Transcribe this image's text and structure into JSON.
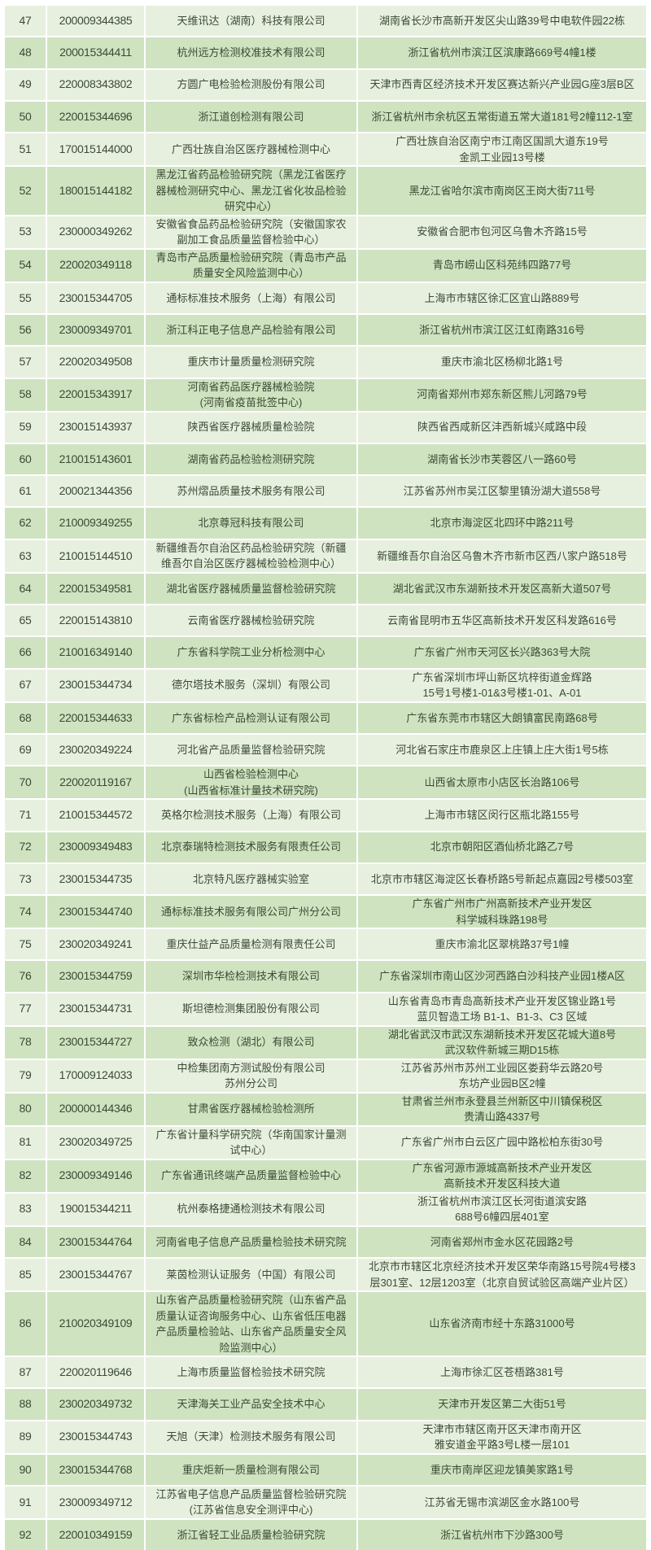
{
  "colors": {
    "row_light": "#e7f0df",
    "row_green": "#cfe3c1",
    "text": "#3b4a33"
  },
  "rows": [
    {
      "no": "47",
      "code": "200009344385",
      "name": "天维讯达（湖南）科技有限公司",
      "address": "湖南省长沙市高新开发区尖山路39号中电软件园22栋"
    },
    {
      "no": "48",
      "code": "200015344411",
      "name": "杭州远方检测校准技术有限公司",
      "address": "浙江省杭州市滨江区滨康路669号4幢1楼"
    },
    {
      "no": "49",
      "code": "220008343802",
      "name": "方圆广电检验检测股份有限公司",
      "address": "天津市西青区经济技术开发区赛达新兴产业园G座3层B区"
    },
    {
      "no": "50",
      "code": "220015344696",
      "name": "浙江道创检测有限公司",
      "address": "浙江省杭州市余杭区五常街道五常大道181号2幢112-1室"
    },
    {
      "no": "51",
      "code": "170015144000",
      "name": "广西壮族自治区医疗器械检测中心",
      "address": "广西壮族自治区南宁市江南区国凯大道东19号\n金凯工业园13号楼"
    },
    {
      "no": "52",
      "code": "180015144182",
      "name": "黑龙江省药品检验研究院（黑龙江省医疗\n器械检测研究中心、黑龙江省化妆品检验\n研究中心）",
      "address": "黑龙江省哈尔滨市南岗区王岗大街711号"
    },
    {
      "no": "53",
      "code": "230000349262",
      "name": "安徽省食品药品检验研究院（安徽国家农\n副加工食品质量监督检验中心）",
      "address": "安徽省合肥市包河区乌鲁木齐路15号"
    },
    {
      "no": "54",
      "code": "220020349118",
      "name": "青岛市产品质量检验研究院（青岛市产品\n质量安全风险监测中心）",
      "address": "青岛市崂山区科苑纬四路77号"
    },
    {
      "no": "55",
      "code": "230015344705",
      "name": "通标标准技术服务（上海）有限公司",
      "address": "上海市市辖区徐汇区宜山路889号"
    },
    {
      "no": "56",
      "code": "230009349701",
      "name": "浙江科正电子信息产品检验有限公司",
      "address": "浙江省杭州市滨江区江虹南路316号"
    },
    {
      "no": "57",
      "code": "220020349508",
      "name": "重庆市计量质量检测研究院",
      "address": "重庆市渝北区杨柳北路1号"
    },
    {
      "no": "58",
      "code": "220015343917",
      "name": "河南省药品医疗器械检验院\n(河南省疫苗批签中心)",
      "address": "河南省郑州市郑东新区熊儿河路79号"
    },
    {
      "no": "59",
      "code": "230015143937",
      "name": "陕西省医疗器械质量检验院",
      "address": "陕西省西咸新区沣西新城兴咸路中段"
    },
    {
      "no": "60",
      "code": "210015143601",
      "name": "湖南省药品检验检测研究院",
      "address": "湖南省长沙市芙蓉区八一路60号"
    },
    {
      "no": "61",
      "code": "200021344356",
      "name": "苏州熠品质量技术服务有限公司",
      "address": "江苏省苏州市吴江区黎里镇汾湖大道558号"
    },
    {
      "no": "62",
      "code": "210009349255",
      "name": "北京尊冠科技有限公司",
      "address": "北京市海淀区北四环中路211号"
    },
    {
      "no": "63",
      "code": "210015144510",
      "name": "新疆维吾尔自治区药品检验研究院（新疆\n维吾尔自治区医疗器械检验检测中心）",
      "address": "新疆维吾尔自治区乌鲁木齐市新市区西八家户路518号"
    },
    {
      "no": "64",
      "code": "220015349581",
      "name": "湖北省医疗器械质量监督检验研究院",
      "address": "湖北省武汉市东湖新技术开发区高新大道507号"
    },
    {
      "no": "65",
      "code": "220015143810",
      "name": "云南省医疗器械检验研究院",
      "address": "云南省昆明市五华区高新技术开发区科发路616号"
    },
    {
      "no": "66",
      "code": "210016349140",
      "name": "广东省科学院工业分析检测中心",
      "address": "广东省广州市天河区长兴路363号大院"
    },
    {
      "no": "67",
      "code": "230015344734",
      "name": "德尔塔技术服务（深圳）有限公司",
      "address": "广东省深圳市坪山新区坑梓街道金辉路\n15号1号楼1-01&3号楼1-01、A-01"
    },
    {
      "no": "68",
      "code": "220015344633",
      "name": "广东省标检产品检测认证有限公司",
      "address": "广东省东莞市市辖区大朗镇富民南路68号"
    },
    {
      "no": "69",
      "code": "230020349224",
      "name": "河北省产品质量监督检验研究院",
      "address": "河北省石家庄市鹿泉区上庄镇上庄大街1号5栋"
    },
    {
      "no": "70",
      "code": "220020119167",
      "name": "山西省检验检测中心\n(山西省标准计量技术研究院)",
      "address": "山西省太原市小店区长治路106号"
    },
    {
      "no": "71",
      "code": "210015344572",
      "name": "英格尔检测技术服务（上海）有限公司",
      "address": "上海市市辖区闵行区瓶北路155号"
    },
    {
      "no": "72",
      "code": "230009349483",
      "name": "北京泰瑞特检测技术服务有限责任公司",
      "address": "北京市朝阳区酒仙桥北路乙7号"
    },
    {
      "no": "73",
      "code": "230015344735",
      "name": "北京特凡医疗器械实验室",
      "address": "北京市市辖区海淀区长春桥路5号新起点嘉园2号楼503室"
    },
    {
      "no": "74",
      "code": "230015344740",
      "name": "通标标准技术服务有限公司广州分公司",
      "address": "广东省广州市广州高新技术产业开发区\n科学城科珠路198号"
    },
    {
      "no": "75",
      "code": "230020349241",
      "name": "重庆仕益产品质量检测有限责任公司",
      "address": "重庆市渝北区翠桃路37号1幢"
    },
    {
      "no": "76",
      "code": "230015344759",
      "name": "深圳市华检检测技术有限公司",
      "address": "广东省深圳市南山区沙河西路白沙科技产业园1楼A区"
    },
    {
      "no": "77",
      "code": "230015344731",
      "name": "斯坦德检测集团股份有限公司",
      "address": "山东省青岛市青岛高新技术产业开发区锦业路1号\n蓝贝智造工场 B1-1、B1-3、C3 区域"
    },
    {
      "no": "78",
      "code": "230015344727",
      "name": "致众检测（湖北）有限公司",
      "address": "湖北省武汉市武汉东湖新技术开发区花城大道8号\n武汉软件新城三期D15栋"
    },
    {
      "no": "79",
      "code": "170009124033",
      "name": "中检集团南方测试股份有限公司\n苏州分公司",
      "address": "江苏省苏州市苏州工业园区娄葑华云路20号\n东坊产业园B区2幢"
    },
    {
      "no": "80",
      "code": "200000144346",
      "name": "甘肃省医疗器械检验检测所",
      "address": "甘肃省兰州市永登县兰州新区中川镇保税区\n贵清山路4337号"
    },
    {
      "no": "81",
      "code": "230020349725",
      "name": "广东省计量科学研究院（华南国家计量测\n试中心）",
      "address": "广东省广州市白云区广园中路松柏东街30号"
    },
    {
      "no": "82",
      "code": "230009349146",
      "name": "广东省通讯终端产品质量监督检验中心",
      "address": "广东省河源市源城高新技术产业开发区\n高新技术开发区科技大道"
    },
    {
      "no": "83",
      "code": "190015344211",
      "name": "杭州泰格捷通检测技术有限公司",
      "address": "浙江省杭州市滨江区长河街道滨安路\n688号6幢四层401室"
    },
    {
      "no": "84",
      "code": "230015344764",
      "name": "河南省电子信息产品质量检验技术研究院",
      "address": "河南省郑州市金水区花园路2号"
    },
    {
      "no": "85",
      "code": "230015344767",
      "name": "莱茵检测认证服务（中国）有限公司",
      "address": "北京市市辖区北京经济技术开发区荣华南路15号院4号楼3\n层301室、12层1203室（北京自贸试验区高端产业片区）"
    },
    {
      "no": "86",
      "code": "210020349109",
      "name": "山东省产品质量检验研究院（山东省产品\n质量认证咨询服务中心、山东省低压电器\n产品质量检验站、山东省产品质量安全风\n险监测中心）",
      "address": "山东省济南市经十东路31000号"
    },
    {
      "no": "87",
      "code": "220020119646",
      "name": "上海市质量监督检验技术研究院",
      "address": "上海市徐汇区苍梧路381号"
    },
    {
      "no": "88",
      "code": "230020349732",
      "name": "天津海关工业产品安全技术中心",
      "address": "天津市开发区第二大街51号"
    },
    {
      "no": "89",
      "code": "230015344743",
      "name": "天旭（天津）检测技术服务有限公司",
      "address": "天津市市辖区南开区天津市南开区\n雅安道金平路3号L楼一层101"
    },
    {
      "no": "90",
      "code": "230015344768",
      "name": "重庆炬新一质量检测有限公司",
      "address": "重庆市南岸区迎龙镇美家路1号"
    },
    {
      "no": "91",
      "code": "230009349712",
      "name": "江苏省电子信息产品质量监督检验研究院\n(江苏省信息安全测评中心)",
      "address": "江苏省无锡市滨湖区金水路100号"
    },
    {
      "no": "92",
      "code": "220010349159",
      "name": "浙江省轻工业品质量检验研究院",
      "address": "浙江省杭州市下沙路300号"
    }
  ]
}
